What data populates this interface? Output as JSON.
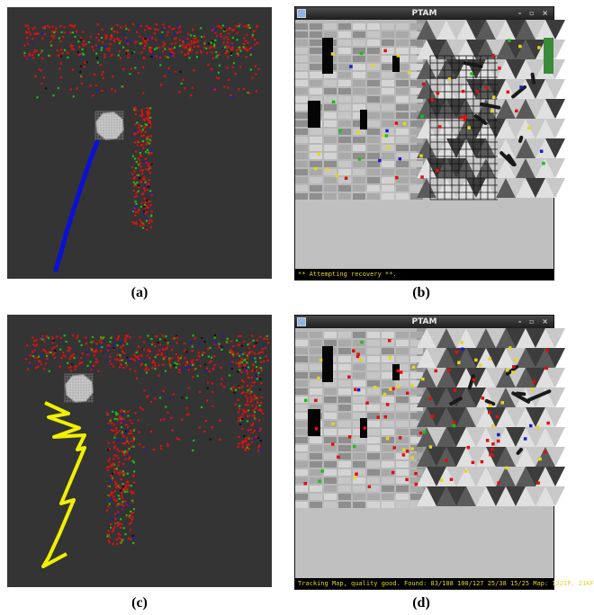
{
  "captions": {
    "a": "(a)",
    "b": "(b)",
    "c": "(c)",
    "d": "(d)"
  },
  "window_b": {
    "title": "PTAM",
    "controls": "- ▫ ×",
    "status": "** Attempting recovery **."
  },
  "window_d": {
    "title": "PTAM",
    "controls": "- ▫ ×",
    "status": "Tracking Map, quality good. Found: 83/108 100/127 25/38 15/25 Map: 1321P, 21KF"
  },
  "colors": {
    "map_background": "#343434",
    "map_points": "#e01010",
    "map_points_alt": "#16c016",
    "map_points_yellow": "#e6d61a",
    "trajectory_a": "#0b10d8",
    "trajectory_c": "#f0f000",
    "camera": "#cfcfcf",
    "status_text": "#e2d22b",
    "floor": "#c0c0c0"
  },
  "icons": {
    "window_icon": "app-window-icon"
  }
}
